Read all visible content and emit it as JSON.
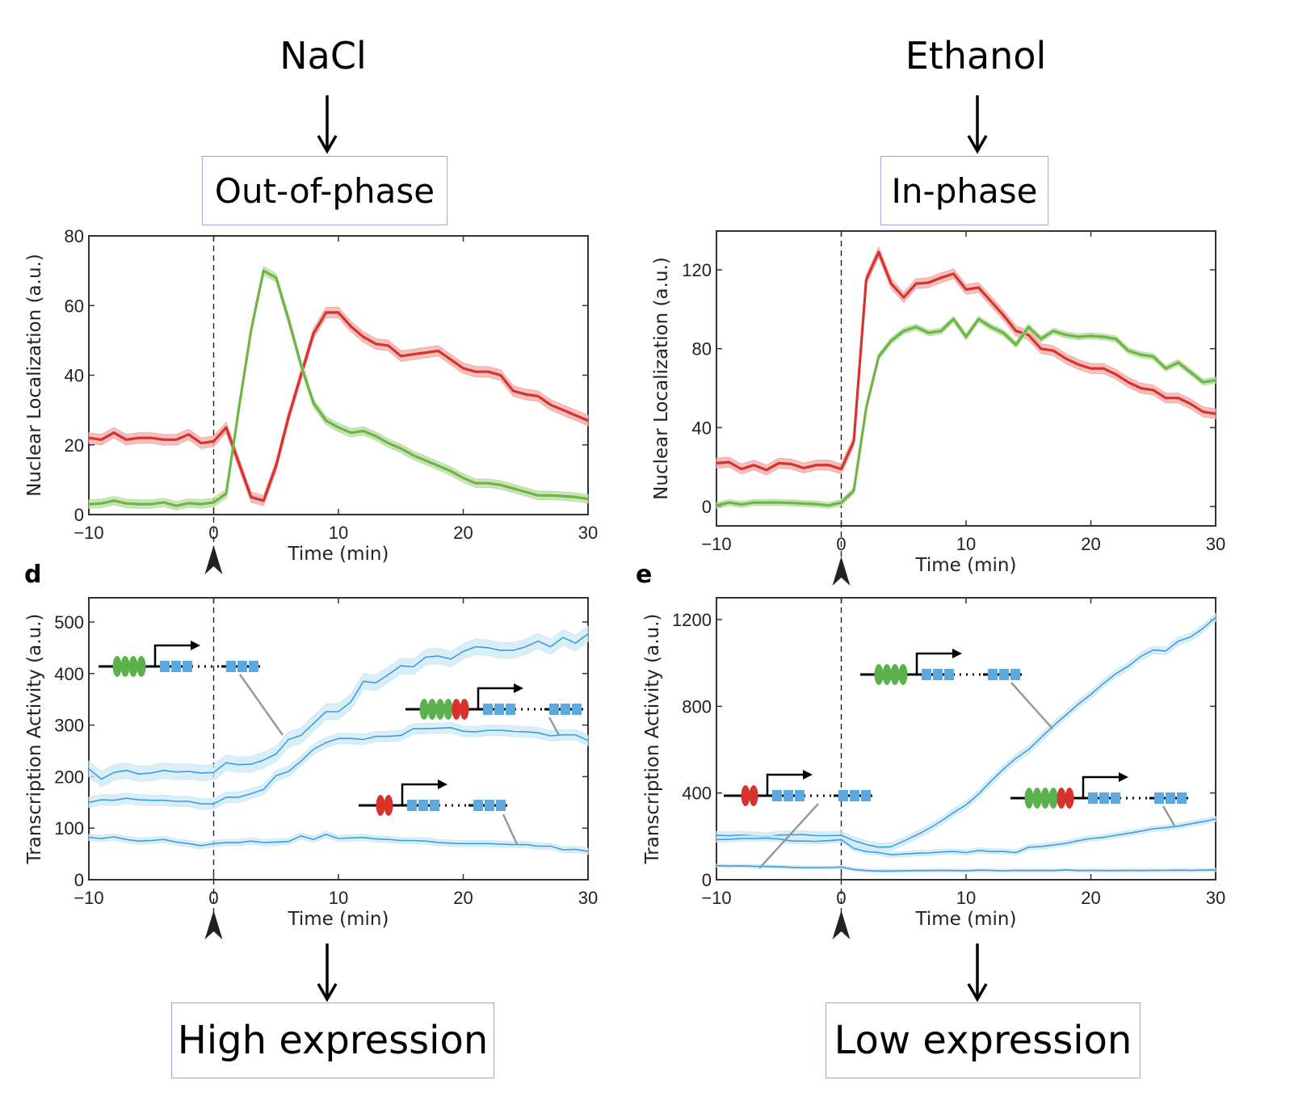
{
  "header": {
    "left_condition": "NaCl",
    "right_condition": "Ethanol",
    "left_phase": "Out-of-phase",
    "right_phase": "In-phase"
  },
  "footer": {
    "left_outcome": "High expression",
    "right_outcome": "Low expression"
  },
  "panel_letters": {
    "d": "d",
    "e": "e"
  },
  "colors": {
    "red": "#d7322c",
    "red_band": "#f2a9a8",
    "green": "#6db545",
    "green_band": "#b8dca2",
    "blue": "#3a9ee0",
    "blue_band": "#cde8f5",
    "box_border": "#9aa6e8",
    "leader_line": "#999999",
    "site_blue": "#5aa9e0"
  },
  "chart_data": [
    {
      "id": "nacl-localization",
      "type": "line",
      "title": "",
      "xlabel": "Time (min)",
      "ylabel": "Nuclear Localization (a.u.)",
      "xlim": [
        -10,
        30
      ],
      "ylim": [
        0,
        80
      ],
      "xticks": [
        -10,
        0,
        10,
        20,
        30
      ],
      "yticks": [
        0,
        20,
        40,
        60,
        80
      ],
      "xtick_labels": [
        "−10",
        "0",
        "10",
        "20",
        "30"
      ],
      "ytick_labels": [
        "0",
        "20",
        "40",
        "60",
        "80"
      ],
      "grid": false,
      "stimulus_time": 0,
      "x": [
        -10,
        -9,
        -8,
        -7,
        -6,
        -5,
        -4,
        -3,
        -2,
        -1,
        0,
        1,
        2,
        3,
        4,
        5,
        6,
        7,
        8,
        9,
        10,
        11,
        12,
        13,
        14,
        15,
        16,
        17,
        18,
        19,
        20,
        21,
        22,
        23,
        24,
        25,
        26,
        27,
        28,
        29,
        30
      ],
      "series": [
        {
          "name": "red",
          "color": "red",
          "band": 1.5,
          "values": [
            22,
            21.5,
            23.5,
            21.5,
            22,
            22,
            21.5,
            21.5,
            23,
            20.5,
            21,
            25,
            15,
            5,
            4,
            14,
            28,
            40,
            52,
            58,
            58,
            54,
            51,
            49,
            48.5,
            45.5,
            46,
            46.5,
            47,
            44.5,
            42,
            41,
            41,
            40,
            35.5,
            34.5,
            34,
            31.5,
            30,
            28.5,
            27
          ]
        },
        {
          "name": "green",
          "color": "green",
          "band": 1.2,
          "values": [
            3,
            3.2,
            4,
            3.2,
            3,
            3,
            3.5,
            2.5,
            3.3,
            3,
            3.5,
            6,
            30,
            53,
            70,
            68,
            56,
            43,
            32,
            27,
            25,
            23.5,
            24,
            22.5,
            20.5,
            19,
            17,
            15.5,
            14,
            12.5,
            10.5,
            9,
            9,
            8.5,
            7.5,
            6.5,
            5.5,
            5.5,
            5.3,
            5,
            4.5
          ]
        }
      ]
    },
    {
      "id": "ethanol-localization",
      "type": "line",
      "title": "",
      "xlabel": "Time (min)",
      "ylabel": "Nuclear Localization (a.u.)",
      "xlim": [
        -10,
        30
      ],
      "ylim": [
        -5,
        140
      ],
      "xticks": [
        -10,
        0,
        10,
        20,
        30
      ],
      "yticks": [
        0,
        40,
        80,
        120
      ],
      "xtick_labels": [
        "−10",
        "0",
        "10",
        "20",
        "30"
      ],
      "ytick_labels": [
        "0",
        "40",
        "80",
        "120"
      ],
      "grid": false,
      "stimulus_time": 0,
      "x": [
        -10,
        -9,
        -8,
        -7,
        -6,
        -5,
        -4,
        -3,
        -2,
        -1,
        0,
        1,
        2,
        3,
        4,
        5,
        6,
        7,
        8,
        9,
        10,
        11,
        12,
        13,
        14,
        15,
        16,
        17,
        18,
        19,
        20,
        21,
        22,
        23,
        24,
        25,
        26,
        27,
        28,
        29,
        30
      ],
      "series": [
        {
          "name": "red",
          "color": "red",
          "band": 2.5,
          "values": [
            22,
            22.5,
            19,
            21,
            18.5,
            22,
            21.5,
            19.5,
            21,
            21,
            19,
            33,
            115,
            129,
            113,
            106,
            113,
            113.5,
            116,
            118,
            110,
            111,
            104,
            97,
            89,
            87,
            80,
            79,
            75,
            72,
            70,
            70,
            67,
            63,
            60,
            59,
            55,
            55,
            52,
            48,
            47
          ]
        },
        {
          "name": "green",
          "color": "green",
          "band": 1.5,
          "values": [
            0.5,
            2,
            1,
            2,
            2,
            2,
            1.8,
            1.5,
            1.2,
            0.5,
            2,
            8,
            50,
            76,
            84,
            89,
            91,
            88,
            89,
            95,
            86,
            95,
            91,
            88,
            82,
            91,
            85,
            89,
            87,
            86,
            86.5,
            86,
            85,
            79,
            77,
            76,
            70,
            73,
            68,
            63,
            64
          ]
        }
      ]
    },
    {
      "id": "nacl-transcription",
      "type": "line",
      "title": "",
      "xlabel": "Time (min)",
      "ylabel": "Transcription Activity (a.u.)",
      "xlim": [
        -10,
        30
      ],
      "ylim": [
        0,
        550
      ],
      "xticks": [
        -10,
        0,
        10,
        20,
        30
      ],
      "yticks": [
        0,
        100,
        200,
        300,
        400,
        500
      ],
      "xtick_labels": [
        "−10",
        "0",
        "10",
        "20",
        "30"
      ],
      "ytick_labels": [
        "0",
        "100",
        "200",
        "300",
        "400",
        "500"
      ],
      "grid": false,
      "stimulus_time": 0,
      "x": [
        -10,
        -9,
        -8,
        -7,
        -6,
        -5,
        -4,
        -3,
        -2,
        -1,
        0,
        1,
        2,
        3,
        4,
        5,
        6,
        7,
        8,
        9,
        10,
        11,
        12,
        13,
        14,
        15,
        16,
        17,
        18,
        19,
        20,
        21,
        22,
        23,
        24,
        25,
        26,
        27,
        28,
        29,
        30
      ],
      "series": [
        {
          "name": "4 high-affinity sites",
          "color": "blue",
          "band": 15,
          "values": [
            215,
            195,
            208,
            212,
            205,
            207,
            212,
            209,
            210,
            207,
            208,
            227,
            223,
            224,
            232,
            244,
            272,
            280,
            303,
            326,
            326,
            345,
            385,
            382,
            398,
            415,
            413,
            432,
            434,
            428,
            443,
            452,
            450,
            445,
            445,
            452,
            463,
            452,
            470,
            459,
            477
          ]
        },
        {
          "name": "4 high + 2 low-affinity sites",
          "color": "blue",
          "band": 10,
          "values": [
            150,
            155,
            154,
            158,
            155,
            154,
            154,
            152,
            152,
            147,
            147,
            160,
            160,
            167,
            175,
            202,
            210,
            230,
            253,
            266,
            274,
            274,
            272,
            278,
            278,
            280,
            293,
            293,
            294,
            295,
            288,
            287,
            290,
            290,
            288,
            287,
            285,
            279,
            281,
            281,
            270
          ]
        },
        {
          "name": "2 low-affinity sites",
          "color": "blue",
          "band": 6,
          "values": [
            82,
            80,
            83,
            78,
            75,
            76,
            78,
            73,
            70,
            66,
            70,
            72,
            72,
            75,
            72,
            73,
            74,
            85,
            78,
            88,
            80,
            81,
            82,
            79,
            78,
            76,
            76,
            75,
            72,
            71,
            70,
            70,
            70,
            69,
            68,
            68,
            65,
            65,
            58,
            59,
            55
          ]
        }
      ]
    },
    {
      "id": "ethanol-transcription",
      "type": "line",
      "title": "",
      "xlabel": "Time (min)",
      "ylabel": "Transcription Activity (a.u.)",
      "xlim": [
        -10,
        30
      ],
      "ylim": [
        0,
        1300
      ],
      "xticks": [
        -10,
        0,
        10,
        20,
        30
      ],
      "yticks": [
        0,
        400,
        800,
        1200
      ],
      "xtick_labels": [
        "−10",
        "0",
        "10",
        "20",
        "30"
      ],
      "ytick_labels": [
        "0",
        "400",
        "800",
        "1200"
      ],
      "grid": false,
      "stimulus_time": 0,
      "x": [
        -10,
        -9,
        -8,
        -7,
        -6,
        -5,
        -4,
        -3,
        -2,
        -1,
        0,
        1,
        2,
        3,
        4,
        5,
        6,
        7,
        8,
        9,
        10,
        11,
        12,
        13,
        14,
        15,
        16,
        17,
        18,
        19,
        20,
        21,
        22,
        23,
        24,
        25,
        26,
        27,
        28,
        29,
        30
      ],
      "series": [
        {
          "name": "4 high-affinity sites",
          "color": "blue",
          "band": 18,
          "values": [
            205,
            203,
            206,
            202,
            198,
            206,
            207,
            208,
            203,
            203,
            205,
            180,
            162,
            150,
            152,
            178,
            205,
            235,
            270,
            310,
            345,
            395,
            455,
            510,
            560,
            600,
            655,
            710,
            760,
            810,
            855,
            905,
            950,
            985,
            1030,
            1060,
            1055,
            1100,
            1120,
            1160,
            1210
          ]
        },
        {
          "name": "4 high + 2 low-affinity sites",
          "color": "blue",
          "band": 12,
          "values": [
            185,
            186,
            190,
            190,
            192,
            188,
            178,
            178,
            177,
            180,
            185,
            145,
            130,
            125,
            115,
            118,
            122,
            123,
            128,
            130,
            125,
            135,
            130,
            130,
            125,
            150,
            153,
            160,
            168,
            180,
            190,
            195,
            205,
            214,
            224,
            235,
            240,
            247,
            258,
            268,
            280
          ]
        },
        {
          "name": "2 low-affinity sites",
          "color": "blue",
          "band": 7,
          "values": [
            65,
            63,
            64,
            62,
            61,
            60,
            57,
            56,
            56,
            56,
            58,
            47,
            42,
            40,
            40,
            41,
            42,
            42,
            43,
            42,
            41,
            44,
            43,
            41,
            43,
            42,
            43,
            42,
            45,
            42,
            43,
            42,
            42,
            43,
            42,
            43,
            43,
            44,
            43,
            44,
            45
          ]
        }
      ]
    }
  ],
  "diagrams": {
    "nacl": [
      {
        "label": "4 green sites promoter",
        "green": 4,
        "red": 0
      },
      {
        "label": "4 green + 2 red sites promoter",
        "green": 4,
        "red": 2
      },
      {
        "label": "2 red sites promoter",
        "green": 0,
        "red": 2
      }
    ],
    "ethanol": [
      {
        "label": "4 green sites promoter",
        "green": 4,
        "red": 0
      },
      {
        "label": "2 red sites promoter",
        "green": 0,
        "red": 2
      },
      {
        "label": "4 green + 2 red sites promoter",
        "green": 4,
        "red": 2
      }
    ]
  }
}
